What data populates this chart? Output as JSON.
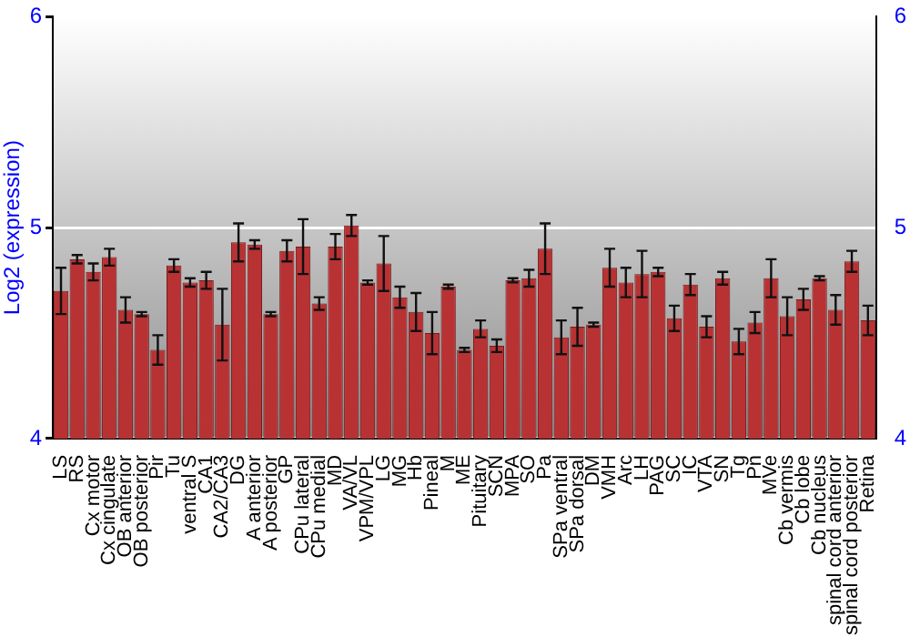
{
  "chart_data": {
    "type": "bar",
    "ylabel": "Log2 (expression)",
    "categories": [
      "LS",
      "RS",
      "Cx motor",
      "Cx cingulate",
      "OB anterior",
      "OB posterior",
      "Pir",
      "Tu",
      "ventral S",
      "CA1",
      "CA2/CA3",
      "DG",
      "A anterior",
      "A posterior",
      "GP",
      "CPu lateral",
      "CPu medial",
      "MD",
      "VA/VL",
      "VPM/VPL",
      "LG",
      "MG",
      "Hb",
      "Pineal",
      "M",
      "ME",
      "Pituitary",
      "SCN",
      "MPA",
      "SO",
      "Pa",
      "SPa ventral",
      "SPa dorsal",
      "DM",
      "VMH",
      "Arc",
      "LH",
      "PAG",
      "SC",
      "IC",
      "VTA",
      "SN",
      "Tg",
      "Pn",
      "MVe",
      "Cb vermis",
      "Cb lobe",
      "Cb nucleus",
      "spinal cord anterior",
      "spinal cord posterior",
      "Retina"
    ],
    "values": [
      4.7,
      4.85,
      4.79,
      4.86,
      4.61,
      4.59,
      4.42,
      4.82,
      4.74,
      4.75,
      4.54,
      4.93,
      4.92,
      4.59,
      4.89,
      4.91,
      4.64,
      4.91,
      5.01,
      4.74,
      4.83,
      4.67,
      4.6,
      4.5,
      4.72,
      4.42,
      4.52,
      4.44,
      4.75,
      4.76,
      4.9,
      4.48,
      4.53,
      4.54,
      4.81,
      4.74,
      4.78,
      4.79,
      4.57,
      4.73,
      4.53,
      4.76,
      4.46,
      4.55,
      4.76,
      4.58,
      4.66,
      4.76,
      4.61,
      4.84,
      4.56
    ],
    "errors": [
      0.11,
      0.02,
      0.04,
      0.04,
      0.06,
      0.01,
      0.07,
      0.03,
      0.02,
      0.04,
      0.17,
      0.09,
      0.02,
      0.01,
      0.05,
      0.13,
      0.03,
      0.06,
      0.05,
      0.01,
      0.13,
      0.05,
      0.09,
      0.1,
      0.01,
      0.01,
      0.04,
      0.03,
      0.01,
      0.04,
      0.12,
      0.08,
      0.09,
      0.01,
      0.09,
      0.07,
      0.11,
      0.02,
      0.06,
      0.05,
      0.05,
      0.03,
      0.06,
      0.05,
      0.09,
      0.09,
      0.05,
      0.01,
      0.07,
      0.05,
      0.07
    ],
    "color": "#b83234",
    "ylim": [
      4,
      6
    ],
    "yticks": [
      4,
      5,
      6
    ],
    "y2lim": [
      4,
      6
    ],
    "y2ticks": [
      4,
      5,
      6
    ],
    "grid": "y",
    "legend": false
  }
}
